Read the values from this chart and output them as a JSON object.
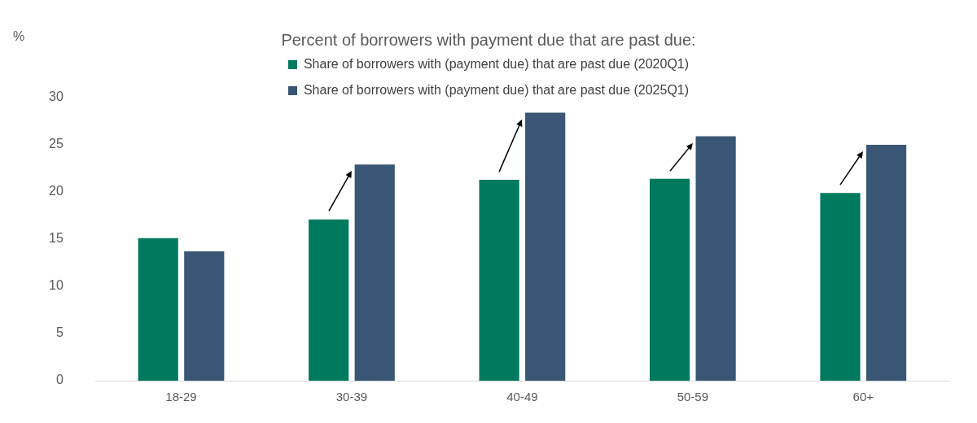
{
  "chart_data": {
    "type": "bar",
    "title": "Percent of borrowers with payment due that are past due:",
    "ylabel": "%",
    "categories": [
      "18-29",
      "30-39",
      "40-49",
      "50-59",
      "60+"
    ],
    "series": [
      {
        "name": "Share of borrowers with (payment due) that are past due (2020Q1)",
        "color": "#007a5e",
        "values": [
          15.1,
          17.1,
          21.3,
          21.4,
          19.9
        ]
      },
      {
        "name": "Share of borrowers with (payment due) that are past due (2025Q1)",
        "color": "#3a5675",
        "values": [
          13.7,
          22.9,
          28.4,
          25.9,
          25.0
        ]
      }
    ],
    "ylim": [
      0,
      30
    ],
    "yticks": [
      0,
      5,
      10,
      15,
      20,
      25,
      30
    ],
    "grid": false,
    "legend": "top"
  }
}
